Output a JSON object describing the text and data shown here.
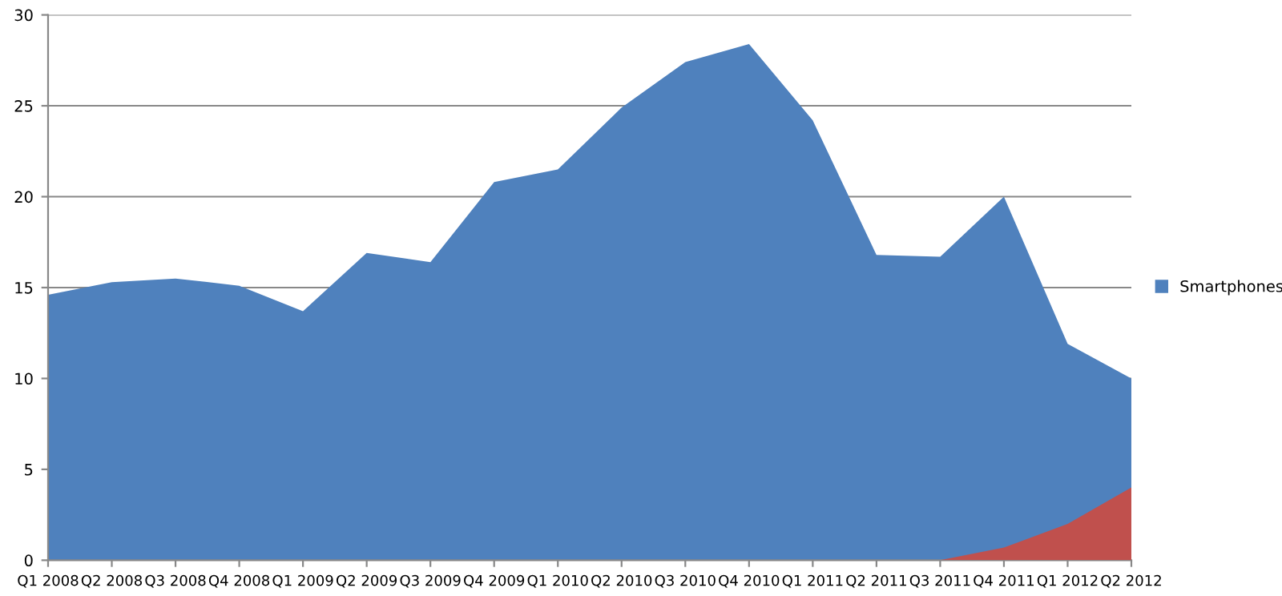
{
  "chart_data": {
    "type": "area",
    "categories": [
      "Q1 2008",
      "Q2 2008",
      "Q3 2008",
      "Q4 2008",
      "Q1 2009",
      "Q2 2009",
      "Q3 2009",
      "Q4 2009",
      "Q1 2010",
      "Q2 2010",
      "Q3 2010",
      "Q4 2010",
      "Q1 2011",
      "Q2 2011",
      "Q3 2011",
      "Q4 2011",
      "Q1 2012",
      "Q2 2012"
    ],
    "series": [
      {
        "name": "Smartphones",
        "color": "#4f81bd",
        "values": [
          14.6,
          15.3,
          15.5,
          15.1,
          13.7,
          16.9,
          16.4,
          20.8,
          21.5,
          24.9,
          27.4,
          28.4,
          24.2,
          16.8,
          16.7,
          20.0,
          11.9,
          10.0
        ]
      },
      {
        "color": "#c0504d",
        "values": [
          null,
          null,
          null,
          null,
          null,
          null,
          null,
          null,
          null,
          null,
          null,
          null,
          null,
          null,
          0,
          0.7,
          2.0,
          4.0
        ]
      }
    ],
    "ylim": [
      0,
      30
    ],
    "yticks": [
      0,
      5,
      10,
      15,
      20,
      25,
      30
    ],
    "grid": "y",
    "legend": "right"
  }
}
